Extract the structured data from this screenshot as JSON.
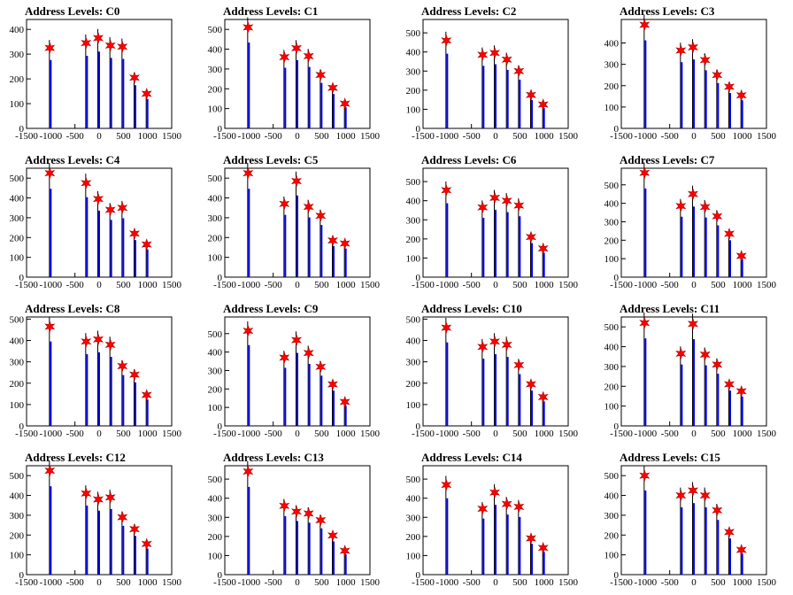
{
  "chart_data": [
    {
      "type": "bar",
      "title": "Address Levels: C0",
      "xlim": [
        -1500,
        1500
      ],
      "xticks": [
        "-1500",
        "-1000",
        "-500",
        "0",
        "500",
        "1000",
        "1500"
      ],
      "ylim": [
        0,
        440
      ],
      "yticks": [
        0,
        100,
        200,
        300,
        400
      ],
      "marker_color": "#ff0000",
      "bar_color": "#0000ff",
      "peaks": [
        {
          "x": -1000,
          "y": 325
        },
        {
          "x": -250,
          "y": 345
        },
        {
          "x": 0,
          "y": 365
        },
        {
          "x": 250,
          "y": 335
        },
        {
          "x": 500,
          "y": 330
        },
        {
          "x": 750,
          "y": 205
        },
        {
          "x": 1000,
          "y": 140
        }
      ]
    },
    {
      "type": "bar",
      "title": "Address Levels: C1",
      "xlim": [
        -1500,
        1500
      ],
      "xticks": [
        "-1500",
        "-1000",
        "-500",
        "0",
        "500",
        "1000",
        "1500"
      ],
      "ylim": [
        0,
        550
      ],
      "yticks": [
        0,
        100,
        200,
        300,
        400,
        500
      ],
      "peaks": [
        {
          "x": -1000,
          "y": 510
        },
        {
          "x": -250,
          "y": 360
        },
        {
          "x": 0,
          "y": 405
        },
        {
          "x": 250,
          "y": 365
        },
        {
          "x": 500,
          "y": 270
        },
        {
          "x": 750,
          "y": 205
        },
        {
          "x": 1000,
          "y": 125
        }
      ]
    },
    {
      "type": "bar",
      "title": "Address Levels: C2",
      "xlim": [
        -1500,
        1500
      ],
      "xticks": [
        "-1500",
        "-1000",
        "-500",
        "0",
        "500",
        "1000",
        "1500"
      ],
      "ylim": [
        0,
        570
      ],
      "yticks": [
        0,
        100,
        200,
        300,
        400,
        500
      ],
      "peaks": [
        {
          "x": -1000,
          "y": 460
        },
        {
          "x": -250,
          "y": 385
        },
        {
          "x": 0,
          "y": 395
        },
        {
          "x": 250,
          "y": 360
        },
        {
          "x": 500,
          "y": 300
        },
        {
          "x": 750,
          "y": 175
        },
        {
          "x": 1000,
          "y": 125
        }
      ]
    },
    {
      "type": "bar",
      "title": "Address Levels: C3",
      "xlim": [
        -1500,
        1500
      ],
      "xticks": [
        "-1500",
        "-1000",
        "-500",
        "0",
        "500",
        "1000",
        "1500"
      ],
      "ylim": [
        0,
        510
      ],
      "yticks": [
        0,
        100,
        200,
        300,
        400
      ],
      "peaks": [
        {
          "x": -1000,
          "y": 485
        },
        {
          "x": -250,
          "y": 365
        },
        {
          "x": 0,
          "y": 380
        },
        {
          "x": 250,
          "y": 320
        },
        {
          "x": 500,
          "y": 250
        },
        {
          "x": 750,
          "y": 195
        },
        {
          "x": 1000,
          "y": 155
        }
      ]
    },
    {
      "type": "bar",
      "title": "Address Levels: C4",
      "xlim": [
        -1500,
        1500
      ],
      "xticks": [
        "-1500",
        "-1000",
        "-500",
        "0",
        "500",
        "1000",
        "1500"
      ],
      "ylim": [
        0,
        550
      ],
      "yticks": [
        0,
        100,
        200,
        300,
        400,
        500
      ],
      "peaks": [
        {
          "x": -1000,
          "y": 525
        },
        {
          "x": -250,
          "y": 475
        },
        {
          "x": 0,
          "y": 395
        },
        {
          "x": 250,
          "y": 340
        },
        {
          "x": 500,
          "y": 350
        },
        {
          "x": 750,
          "y": 220
        },
        {
          "x": 1000,
          "y": 165
        }
      ]
    },
    {
      "type": "bar",
      "title": "Address Levels: C5",
      "xlim": [
        -1500,
        1500
      ],
      "xticks": [
        "-1500",
        "-1000",
        "-500",
        "0",
        "500",
        "1000",
        "1500"
      ],
      "ylim": [
        0,
        550
      ],
      "yticks": [
        0,
        100,
        200,
        300,
        400,
        500
      ],
      "peaks": [
        {
          "x": -1000,
          "y": 525
        },
        {
          "x": -250,
          "y": 370
        },
        {
          "x": 0,
          "y": 485
        },
        {
          "x": 250,
          "y": 355
        },
        {
          "x": 500,
          "y": 310
        },
        {
          "x": 750,
          "y": 185
        },
        {
          "x": 1000,
          "y": 170
        }
      ]
    },
    {
      "type": "bar",
      "title": "Address Levels: C6",
      "xlim": [
        -1500,
        1500
      ],
      "xticks": [
        "-1500",
        "-1000",
        "-500",
        "0",
        "500",
        "1000",
        "1500"
      ],
      "ylim": [
        0,
        570
      ],
      "yticks": [
        0,
        100,
        200,
        300,
        400,
        500
      ],
      "peaks": [
        {
          "x": -1000,
          "y": 455
        },
        {
          "x": -250,
          "y": 365
        },
        {
          "x": 0,
          "y": 415
        },
        {
          "x": 250,
          "y": 400
        },
        {
          "x": 500,
          "y": 375
        },
        {
          "x": 750,
          "y": 210
        },
        {
          "x": 1000,
          "y": 150
        }
      ]
    },
    {
      "type": "bar",
      "title": "Address Levels: C7",
      "xlim": [
        -1500,
        1500
      ],
      "xticks": [
        "-1500",
        "-1000",
        "-500",
        "0",
        "500",
        "1000",
        "1500"
      ],
      "ylim": [
        0,
        590
      ],
      "yticks": [
        0,
        100,
        200,
        300,
        400,
        500
      ],
      "peaks": [
        {
          "x": -1000,
          "y": 565
        },
        {
          "x": -250,
          "y": 385
        },
        {
          "x": 0,
          "y": 450
        },
        {
          "x": 250,
          "y": 380
        },
        {
          "x": 500,
          "y": 330
        },
        {
          "x": 750,
          "y": 235
        },
        {
          "x": 1000,
          "y": 115
        }
      ]
    },
    {
      "type": "bar",
      "title": "Address Levels: C8",
      "xlim": [
        -1500,
        1500
      ],
      "xticks": [
        "-1500",
        "-1000",
        "-500",
        "0",
        "500",
        "1000",
        "1500"
      ],
      "ylim": [
        0,
        510
      ],
      "yticks": [
        0,
        100,
        200,
        300,
        400,
        500
      ],
      "peaks": [
        {
          "x": -1000,
          "y": 465
        },
        {
          "x": -250,
          "y": 395
        },
        {
          "x": 0,
          "y": 405
        },
        {
          "x": 250,
          "y": 380
        },
        {
          "x": 500,
          "y": 280
        },
        {
          "x": 750,
          "y": 240
        },
        {
          "x": 1000,
          "y": 145
        }
      ]
    },
    {
      "type": "bar",
      "title": "Address Levels: C9",
      "xlim": [
        -1500,
        1500
      ],
      "xticks": [
        "-1500",
        "-1000",
        "-500",
        "0",
        "500",
        "1000",
        "1500"
      ],
      "ylim": [
        0,
        590
      ],
      "yticks": [
        0,
        100,
        200,
        300,
        400,
        500
      ],
      "peaks": [
        {
          "x": -1000,
          "y": 515
        },
        {
          "x": -250,
          "y": 370
        },
        {
          "x": 0,
          "y": 465
        },
        {
          "x": 250,
          "y": 395
        },
        {
          "x": 500,
          "y": 320
        },
        {
          "x": 750,
          "y": 225
        },
        {
          "x": 1000,
          "y": 130
        }
      ]
    },
    {
      "type": "bar",
      "title": "Address Levels: C10",
      "xlim": [
        -1500,
        1500
      ],
      "xticks": [
        "-1500",
        "-1000",
        "-500",
        "0",
        "500",
        "1000",
        "1500"
      ],
      "ylim": [
        0,
        510
      ],
      "yticks": [
        0,
        100,
        200,
        300,
        400,
        500
      ],
      "peaks": [
        {
          "x": -1000,
          "y": 460
        },
        {
          "x": -250,
          "y": 370
        },
        {
          "x": 0,
          "y": 395
        },
        {
          "x": 250,
          "y": 380
        },
        {
          "x": 500,
          "y": 285
        },
        {
          "x": 750,
          "y": 195
        },
        {
          "x": 1000,
          "y": 135
        }
      ]
    },
    {
      "type": "bar",
      "title": "Address Levels: C11",
      "xlim": [
        -1500,
        1500
      ],
      "xticks": [
        "-1500",
        "-1000",
        "-500",
        "0",
        "500",
        "1000",
        "1500"
      ],
      "ylim": [
        0,
        550
      ],
      "yticks": [
        0,
        100,
        200,
        300,
        400,
        500
      ],
      "peaks": [
        {
          "x": -1000,
          "y": 520
        },
        {
          "x": -250,
          "y": 365
        },
        {
          "x": 0,
          "y": 515
        },
        {
          "x": 250,
          "y": 360
        },
        {
          "x": 500,
          "y": 310
        },
        {
          "x": 750,
          "y": 210
        },
        {
          "x": 1000,
          "y": 175
        }
      ]
    },
    {
      "type": "bar",
      "title": "Address Levels: C12",
      "xlim": [
        -1500,
        1500
      ],
      "xticks": [
        "-1500",
        "-1000",
        "-500",
        "0",
        "500",
        "1000",
        "1500"
      ],
      "ylim": [
        0,
        550
      ],
      "yticks": [
        0,
        100,
        200,
        300,
        400,
        500
      ],
      "peaks": [
        {
          "x": -1000,
          "y": 525
        },
        {
          "x": -250,
          "y": 410
        },
        {
          "x": 0,
          "y": 380
        },
        {
          "x": 250,
          "y": 390
        },
        {
          "x": 500,
          "y": 290
        },
        {
          "x": 750,
          "y": 230
        },
        {
          "x": 1000,
          "y": 155
        }
      ]
    },
    {
      "type": "bar",
      "title": "Address Levels: C13",
      "xlim": [
        -1500,
        1500
      ],
      "xticks": [
        "-1500",
        "-1000",
        "-500",
        "0",
        "500",
        "1000",
        "1500"
      ],
      "ylim": [
        0,
        570
      ],
      "yticks": [
        0,
        100,
        200,
        300,
        400,
        500
      ],
      "peaks": [
        {
          "x": -1000,
          "y": 540
        },
        {
          "x": -250,
          "y": 360
        },
        {
          "x": 0,
          "y": 330
        },
        {
          "x": 250,
          "y": 320
        },
        {
          "x": 500,
          "y": 285
        },
        {
          "x": 750,
          "y": 205
        },
        {
          "x": 1000,
          "y": 125
        }
      ]
    },
    {
      "type": "bar",
      "title": "Address Levels: C14",
      "xlim": [
        -1500,
        1500
      ],
      "xticks": [
        "-1500",
        "-1000",
        "-500",
        "0",
        "500",
        "1000",
        "1500"
      ],
      "ylim": [
        0,
        570
      ],
      "yticks": [
        0,
        100,
        200,
        300,
        400,
        500
      ],
      "peaks": [
        {
          "x": -1000,
          "y": 470
        },
        {
          "x": -250,
          "y": 345
        },
        {
          "x": 0,
          "y": 430
        },
        {
          "x": 250,
          "y": 370
        },
        {
          "x": 500,
          "y": 355
        },
        {
          "x": 750,
          "y": 190
        },
        {
          "x": 1000,
          "y": 140
        }
      ]
    },
    {
      "type": "bar",
      "title": "Address Levels: C15",
      "xlim": [
        -1500,
        1500
      ],
      "xticks": [
        "-1500",
        "-1000",
        "-500",
        "0",
        "500",
        "1000",
        "1500"
      ],
      "ylim": [
        0,
        550
      ],
      "yticks": [
        0,
        100,
        200,
        300,
        400,
        500
      ],
      "peaks": [
        {
          "x": -1000,
          "y": 500
        },
        {
          "x": -250,
          "y": 400
        },
        {
          "x": 0,
          "y": 425
        },
        {
          "x": 250,
          "y": 400
        },
        {
          "x": 500,
          "y": 325
        },
        {
          "x": 750,
          "y": 215
        },
        {
          "x": 1000,
          "y": 125
        }
      ]
    }
  ]
}
